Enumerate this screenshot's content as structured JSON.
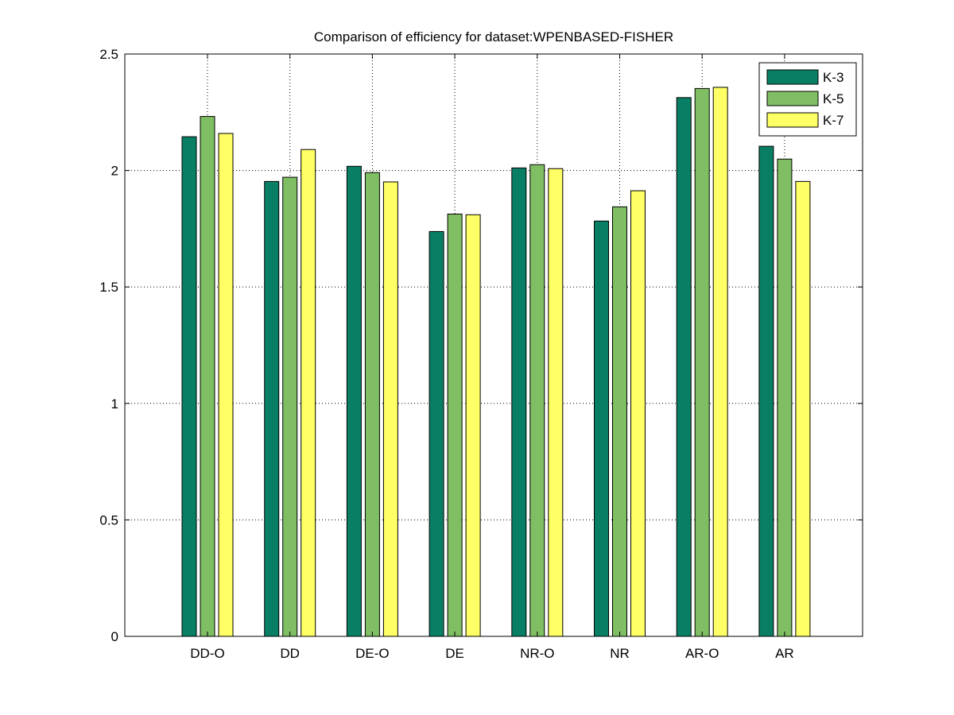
{
  "chart_data": {
    "type": "bar",
    "title": "Comparison of efficiency for dataset:WPENBASED-FISHER",
    "xlabel": "",
    "ylabel": "",
    "categories": [
      "DD-O",
      "DD",
      "DE-O",
      "DE",
      "NR-O",
      "NR",
      "AR-O",
      "AR"
    ],
    "series": [
      {
        "name": "K-3",
        "color": "#087f64",
        "values": [
          2.145,
          1.953,
          2.018,
          1.738,
          2.011,
          1.783,
          2.313,
          2.104
        ]
      },
      {
        "name": "K-5",
        "color": "#7fbe62",
        "values": [
          2.232,
          1.971,
          1.991,
          1.813,
          2.025,
          1.844,
          2.352,
          2.049
        ]
      },
      {
        "name": "K-7",
        "color": "#ffff66",
        "values": [
          2.159,
          2.09,
          1.951,
          1.81,
          2.008,
          1.913,
          2.357,
          1.953
        ]
      }
    ],
    "ylim": [
      0,
      2.5
    ],
    "yticks": [
      0,
      0.5,
      1,
      1.5,
      2,
      2.5
    ],
    "ytick_labels": [
      "0",
      "0.5",
      "1",
      "1.5",
      "2",
      "2.5"
    ],
    "grid": true,
    "legend_position": "top-right"
  }
}
